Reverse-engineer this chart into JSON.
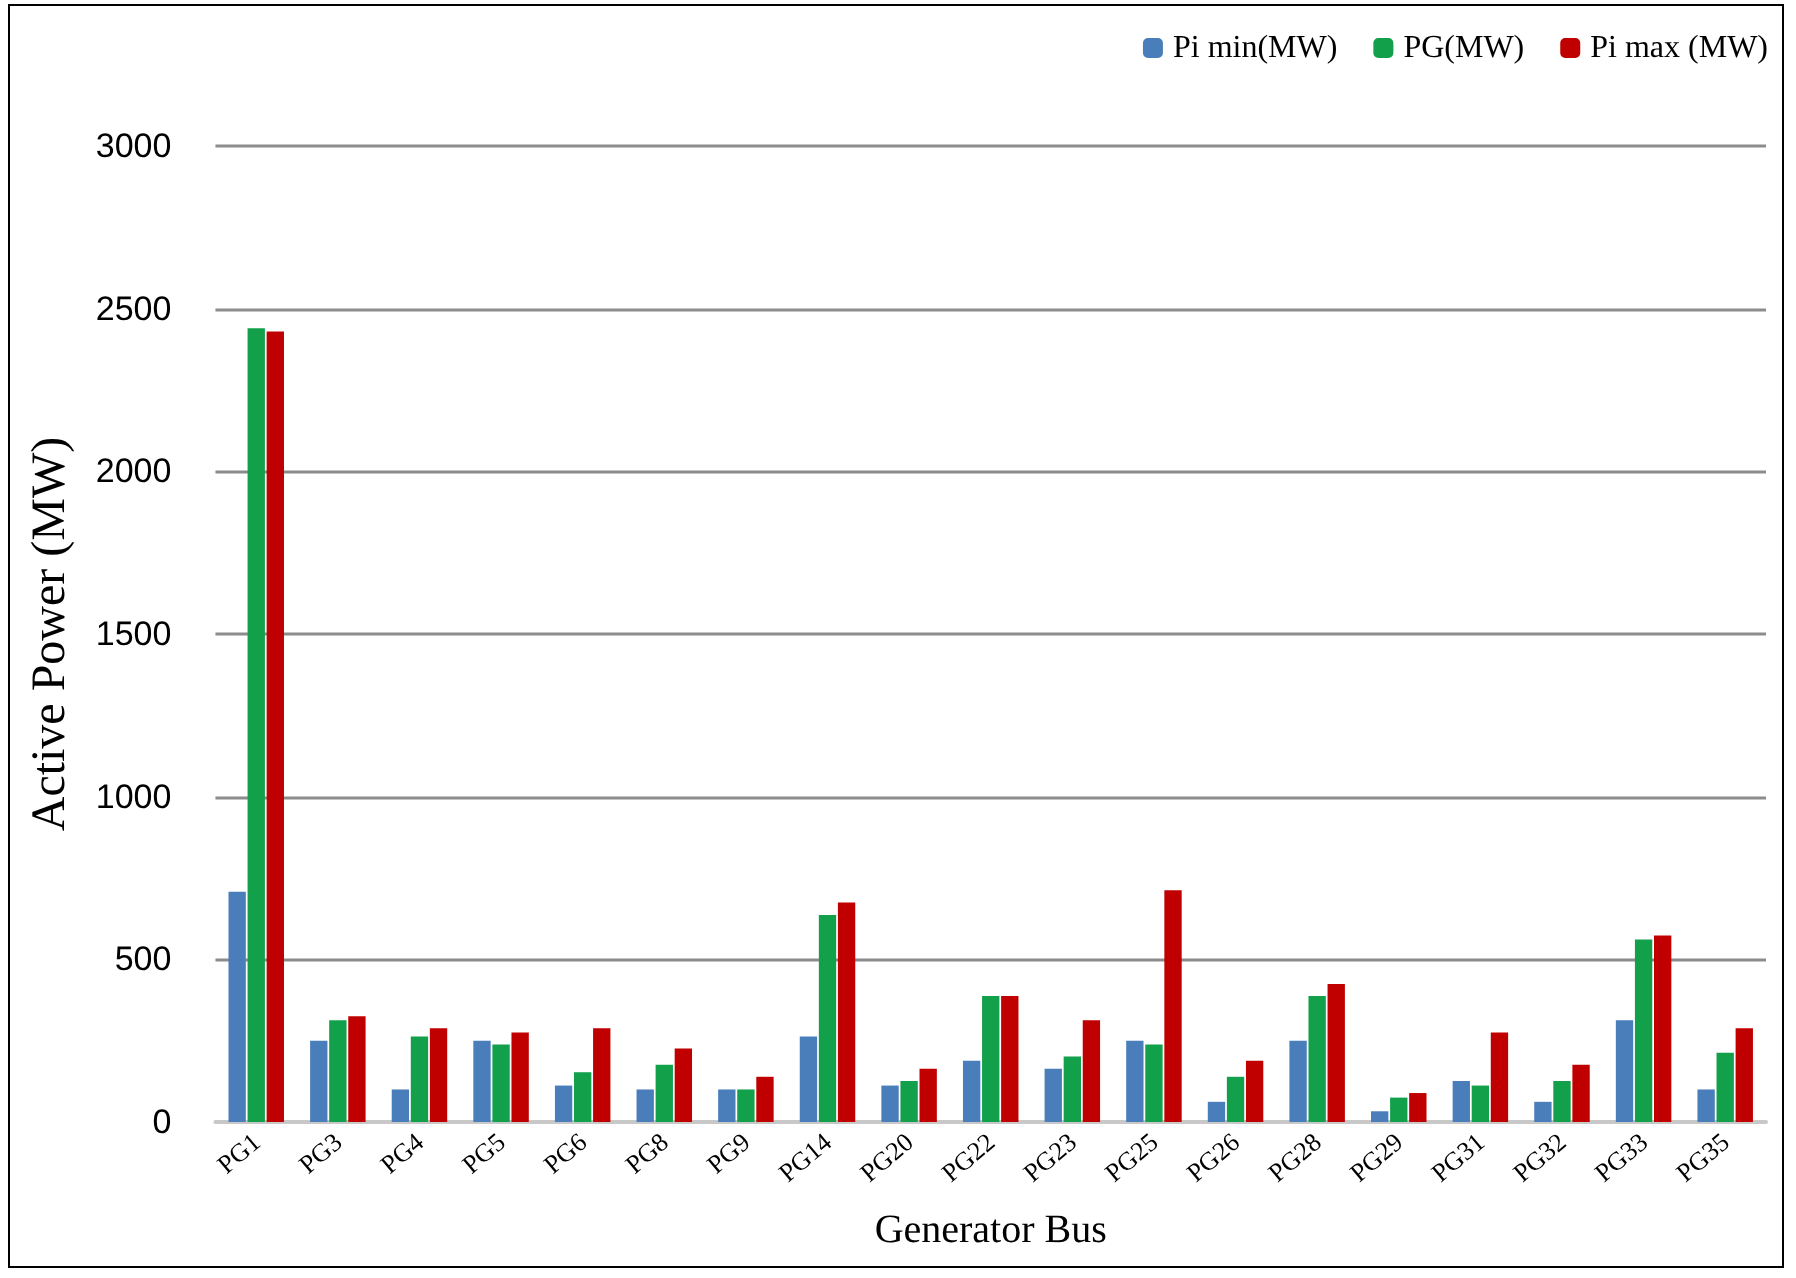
{
  "chart_data": {
    "type": "bar",
    "xlabel": "Generator Bus",
    "ylabel": "Active Power (MW)",
    "categories": [
      "PG1",
      "PG3",
      "PG4",
      "PG5",
      "PG6",
      "PG8",
      "PG9",
      "PG14",
      "PG20",
      "PG22",
      "PG23",
      "PG25",
      "PG26",
      "PG28",
      "PG29",
      "PG31",
      "PG32",
      "PG33",
      "PG35"
    ],
    "series": [
      {
        "name": "Pi min(MW)",
        "color": "#4a7ebb",
        "values": [
          708,
          250,
          100,
          250,
          112,
          100,
          100,
          263,
          112,
          188,
          164,
          250,
          62,
          250,
          33,
          126,
          62,
          313,
          100
        ]
      },
      {
        "name": "PG(MW)",
        "color": "#12a04a",
        "values": [
          2440,
          313,
          263,
          238,
          153,
          176,
          100,
          636,
          126,
          387,
          201,
          238,
          139,
          387,
          75,
          112,
          126,
          561,
          213
        ]
      },
      {
        "name": "Pi max (MW)",
        "color": "#c00000",
        "values": [
          2430,
          325,
          288,
          275,
          288,
          226,
          139,
          675,
          164,
          387,
          313,
          712,
          188,
          424,
          89,
          275,
          176,
          573,
          288
        ]
      }
    ],
    "ylim": [
      0,
      3000
    ],
    "yticks": [
      0,
      500,
      1000,
      1500,
      2000,
      2500,
      3000
    ],
    "grid": "y",
    "legend": "top right"
  }
}
